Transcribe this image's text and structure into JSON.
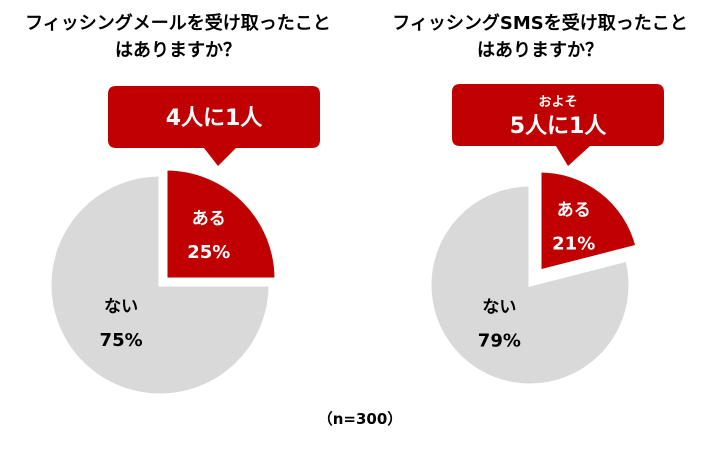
{
  "chart_data": [
    {
      "type": "pie",
      "title": [
        "フィッシングメールを受け取ったこと",
        "はありますか？"
      ],
      "slices": [
        {
          "label": "ある",
          "value": 25,
          "display": "25%",
          "color": "#c00000",
          "exploded": true
        },
        {
          "label": "ない",
          "value": 75,
          "display": "75%",
          "color": "#d9d9d9",
          "exploded": false
        }
      ],
      "callout": {
        "small": "",
        "main": "4人に1人",
        "color": "#c00000"
      }
    },
    {
      "type": "pie",
      "title": [
        "フィッシングSMSを受け取ったこと",
        "はありますか？"
      ],
      "slices": [
        {
          "label": "ある",
          "value": 21,
          "display": "21%",
          "color": "#c00000",
          "exploded": true
        },
        {
          "label": "ない",
          "value": 79,
          "display": "79%",
          "color": "#d9d9d9",
          "exploded": false
        }
      ],
      "callout": {
        "small": "およそ",
        "main": "5人に1人",
        "color": "#c00000"
      }
    }
  ],
  "footnote": "（n=300）"
}
